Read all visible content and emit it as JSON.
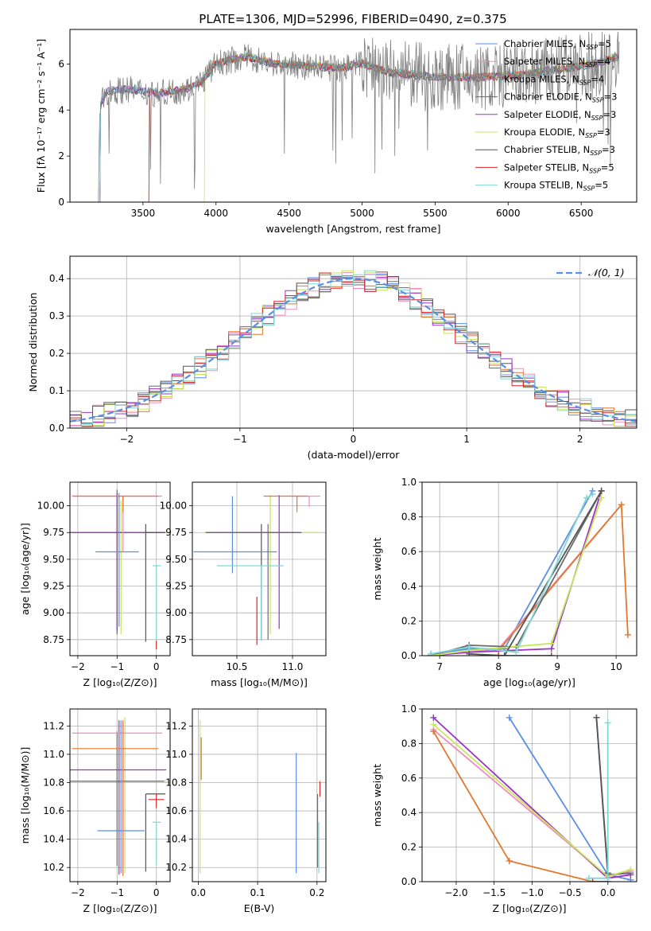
{
  "title": "PLATE=1306, MJD=52996, FIBERID=0490, z=0.375",
  "colors": [
    "#5b8ee6",
    "#f28cc0",
    "#e3772b",
    "#6b6b6b",
    "#9b30c8",
    "#c6e65a",
    "#555555",
    "#d42a2a",
    "#7fd6d6"
  ],
  "chart_data": [
    {
      "type": "line",
      "id": "spectrum",
      "xlabel": "wavelength [Angstrom, rest frame]",
      "ylabel": "Flux [fλ 10⁻¹⁷ erg cm⁻² s⁻¹ A⁻¹]",
      "xlim": [
        3000,
        6880
      ],
      "ylim": [
        0,
        7.5
      ],
      "xticks": [
        3500,
        4000,
        4500,
        5000,
        5500,
        6000,
        6500
      ],
      "yticks": [
        0,
        2,
        4,
        6
      ],
      "legend_placement": "right",
      "legend": [
        {
          "label": "Chabrier MILES, N",
          "sub": "SSP",
          "suffix": "=5",
          "color": "#5b8ee6"
        },
        {
          "label": "Salpeter MILES, N",
          "sub": "SSP",
          "suffix": "=4",
          "color": "#f28cc0"
        },
        {
          "label": "Kroupa MILES, N",
          "sub": "SSP",
          "suffix": "=4",
          "color": "#e3772b"
        },
        {
          "label": "Chabrier ELODIE, N",
          "sub": "SSP",
          "suffix": "=3",
          "color": "#6b6b6b"
        },
        {
          "label": "Salpeter ELODIE, N",
          "sub": "SSP",
          "suffix": "=3",
          "color": "#9b30c8"
        },
        {
          "label": "Kroupa ELODIE, N",
          "sub": "SSP",
          "suffix": "=3",
          "color": "#c6e65a"
        },
        {
          "label": "Chabrier STELIB, N",
          "sub": "SSP",
          "suffix": "=3",
          "color": "#555555"
        },
        {
          "label": "Salpeter STELIB, N",
          "sub": "SSP",
          "suffix": "=5",
          "color": "#d42a2a"
        },
        {
          "label": "Kroupa STELIB, N",
          "sub": "SSP",
          "suffix": "=5",
          "color": "#7fd6d6"
        }
      ],
      "data_spectrum": {
        "x_range": [
          3195,
          6760
        ],
        "continuum": [
          [
            3195,
            0
          ],
          [
            3205,
            4.1
          ],
          [
            3250,
            4.8
          ],
          [
            3400,
            4.9
          ],
          [
            3600,
            4.7
          ],
          [
            3800,
            4.9
          ],
          [
            3900,
            5.2
          ],
          [
            4000,
            6.0
          ],
          [
            4200,
            6.3
          ],
          [
            4400,
            6.0
          ],
          [
            4600,
            5.9
          ],
          [
            4850,
            5.8
          ],
          [
            5000,
            6.0
          ],
          [
            5200,
            5.6
          ],
          [
            5500,
            5.4
          ],
          [
            5800,
            5.4
          ],
          [
            6100,
            5.5
          ],
          [
            6400,
            5.8
          ],
          [
            6600,
            6.0
          ],
          [
            6760,
            6.3
          ]
        ]
      },
      "model_starts": [
        3205,
        3205,
        3540,
        3205,
        3205,
        3920,
        3205,
        3540,
        3205
      ]
    },
    {
      "type": "histogram",
      "id": "residuals",
      "xlabel": "(data-model)/error",
      "ylabel": "Normed distribution",
      "xlim": [
        -2.5,
        2.5
      ],
      "ylim": [
        0,
        0.46
      ],
      "xticks": [
        -2,
        -1,
        0,
        1,
        2
      ],
      "yticks": [
        0.0,
        0.1,
        0.2,
        0.3,
        0.4
      ],
      "grid": true,
      "legend": [
        {
          "label": "𝒩(0, 1)",
          "color": "#5b8ee6",
          "style": "dashed"
        }
      ],
      "legend_placement": "top-right",
      "bin_width": 0.1,
      "peak": 0.4
    },
    {
      "type": "errorbar",
      "id": "age_vs_Z",
      "xlabel": "Z [log₁₀(Z/Z⊙)]",
      "ylabel": "age  [log₁₀(age/yr)]",
      "xlim": [
        -2.2,
        0.35
      ],
      "ylim": [
        8.6,
        10.22
      ],
      "xticks": [
        -2,
        -1,
        0
      ],
      "yticks": [
        8.75,
        9.0,
        9.25,
        9.5,
        9.75,
        10.0
      ],
      "grid": true,
      "points": [
        {
          "x": -0.9,
          "y": 9.75,
          "xerr": [
            1.3,
            1.2
          ],
          "yerr": [
            0.95,
            0.3
          ],
          "color": "#c6e65a"
        },
        {
          "x": -1.0,
          "y": 9.75,
          "xerr": [
            1.2,
            1.2
          ],
          "yerr": [
            0.95,
            0.4
          ],
          "color": "#6b6b6b"
        },
        {
          "x": -1.0,
          "y": 9.75,
          "xerr": [
            1.2,
            1.2
          ],
          "yerr": [
            0.92,
            0.37
          ],
          "color": "#9b30c8"
        },
        {
          "x": -0.85,
          "y": 10.09,
          "xerr": [
            1.3,
            1.0
          ],
          "yerr": [
            0.52,
            0.0
          ],
          "color": "#f28cc0"
        },
        {
          "x": -0.85,
          "y": 10.09,
          "xerr": [
            1.3,
            0.9
          ],
          "yerr": [
            0.15,
            0.0
          ],
          "color": "#e3772b"
        },
        {
          "x": -0.95,
          "y": 9.57,
          "xerr": [
            0.6,
            0.5
          ],
          "yerr": [
            0.7,
            0.55
          ],
          "color": "#5b8ee6"
        },
        {
          "x": -0.27,
          "y": 9.75,
          "xerr": [
            0.0,
            0.5
          ],
          "yerr": [
            1.02,
            0.08
          ],
          "color": "#555555"
        },
        {
          "x": 0.0,
          "y": 9.44,
          "xerr": [
            0.1,
            0.12
          ],
          "yerr": [
            0.7,
            0.0
          ],
          "color": "#7fd6d6"
        },
        {
          "x": 0.0,
          "y": 8.72,
          "xerr": [
            0,
            0
          ],
          "yerr": [
            0.06,
            0.02
          ],
          "color": "#d42a2a"
        }
      ]
    },
    {
      "type": "errorbar",
      "id": "age_vs_mass",
      "xlabel": "mass [log₁₀(M/M⊙)]",
      "ylabel": "",
      "xlim": [
        10.1,
        11.3
      ],
      "ylim": [
        8.6,
        10.22
      ],
      "xticks": [
        10.5,
        11.0
      ],
      "yticks": [
        8.75,
        9.0,
        9.25,
        9.5,
        9.75,
        10.0
      ],
      "grid": true,
      "points": [
        {
          "x": 10.8,
          "y": 9.75,
          "xerr": [
            0.6,
            0.45
          ],
          "yerr": [
            0.95,
            0.35
          ],
          "color": "#c6e65a"
        },
        {
          "x": 10.72,
          "y": 9.75,
          "xerr": [
            0.5,
            0.3
          ],
          "yerr": [
            1.0,
            0.08
          ],
          "color": "#555555"
        },
        {
          "x": 10.88,
          "y": 9.75,
          "xerr": [
            0.6,
            0.2
          ],
          "yerr": [
            0.9,
            0.35
          ],
          "color": "#9b30c8"
        },
        {
          "x": 11.15,
          "y": 10.09,
          "xerr": [
            0.2,
            0.1
          ],
          "yerr": [
            0.1,
            0.0
          ],
          "color": "#f28cc0"
        },
        {
          "x": 11.04,
          "y": 10.09,
          "xerr": [
            0.3,
            0.1
          ],
          "yerr": [
            0.15,
            0.0
          ],
          "color": "#e3772b"
        },
        {
          "x": 10.46,
          "y": 9.57,
          "xerr": [
            0.35,
            0.4
          ],
          "yerr": [
            0.2,
            0.52
          ],
          "color": "#5b8ee6"
        },
        {
          "x": 10.78,
          "y": 9.75,
          "xerr": [
            0.5,
            0.3
          ],
          "yerr": [
            1.0,
            0.08
          ],
          "color": "#6b6b6b"
        },
        {
          "x": 10.72,
          "y": 9.44,
          "xerr": [
            0.4,
            0.2
          ],
          "yerr": [
            0.7,
            0.0
          ],
          "color": "#7fd6d6"
        },
        {
          "x": 10.68,
          "y": 8.95,
          "xerr": [
            0,
            0
          ],
          "yerr": [
            0.25,
            0.2
          ],
          "color": "#d42a2a"
        }
      ]
    },
    {
      "type": "line",
      "id": "massweight_vs_age",
      "xlabel": "age  [log₁₀(age/yr)]",
      "ylabel": "mass weight",
      "xlim": [
        6.7,
        10.35
      ],
      "ylim": [
        0,
        1.0
      ],
      "xticks": [
        7,
        8,
        9,
        10
      ],
      "yticks": [
        0.0,
        0.2,
        0.4,
        0.6,
        0.8,
        1.0
      ],
      "grid": true,
      "series": [
        {
          "color": "#5b8ee6",
          "points": [
            [
              6.85,
              0.01
            ],
            [
              7.5,
              0.04
            ],
            [
              8.1,
              0.04
            ],
            [
              9.6,
              0.95
            ]
          ]
        },
        {
          "color": "#f28cc0",
          "points": [
            [
              7.5,
              0.02
            ],
            [
              8.0,
              0.04
            ],
            [
              10.09,
              0.87
            ]
          ]
        },
        {
          "color": "#e3772b",
          "points": [
            [
              8.0,
              0.03
            ],
            [
              10.09,
              0.87
            ],
            [
              10.2,
              0.12
            ]
          ]
        },
        {
          "color": "#6b6b6b",
          "points": [
            [
              6.85,
              0.0
            ],
            [
              7.5,
              0.06
            ],
            [
              8.3,
              0.05
            ],
            [
              9.75,
              0.95
            ]
          ]
        },
        {
          "color": "#9b30c8",
          "points": [
            [
              6.85,
              0.0
            ],
            [
              7.5,
              0.02
            ],
            [
              8.9,
              0.04
            ],
            [
              9.75,
              0.95
            ]
          ]
        },
        {
          "color": "#c6e65a",
          "points": [
            [
              6.85,
              0.0
            ],
            [
              7.5,
              0.03
            ],
            [
              8.9,
              0.07
            ],
            [
              9.75,
              0.91
            ]
          ]
        },
        {
          "color": "#555555",
          "points": [
            [
              7.5,
              0.01
            ],
            [
              8.1,
              0.0
            ],
            [
              9.75,
              0.95
            ]
          ]
        },
        {
          "color": "#d42a2a",
          "points": [
            [
              8.0,
              0.0
            ],
            [
              8.9,
              0.0
            ]
          ]
        },
        {
          "color": "#7fd6d6",
          "points": [
            [
              6.85,
              0.01
            ],
            [
              7.5,
              0.05
            ],
            [
              8.3,
              0.02
            ],
            [
              9.5,
              0.91
            ],
            [
              9.6,
              0.93
            ]
          ]
        }
      ]
    },
    {
      "type": "errorbar",
      "id": "mass_vs_Z",
      "xlabel": "Z [log₁₀(Z/Z⊙)]",
      "ylabel": "mass [log₁₀(M/M⊙)]",
      "xlim": [
        -2.2,
        0.35
      ],
      "ylim": [
        10.1,
        11.32
      ],
      "xticks": [
        -2,
        -1,
        0
      ],
      "yticks": [
        10.2,
        10.4,
        10.6,
        10.8,
        11.0,
        11.2
      ],
      "grid": true,
      "points": [
        {
          "x": -0.8,
          "y": 10.81,
          "xerr": [
            1.4,
            1.1
          ],
          "yerr": [
            0.65,
            0.45
          ],
          "color": "#c6e65a"
        },
        {
          "x": -1.0,
          "y": 10.81,
          "xerr": [
            1.2,
            1.2
          ],
          "yerr": [
            0.6,
            0.35
          ],
          "color": "#6b6b6b"
        },
        {
          "x": -0.95,
          "y": 10.89,
          "xerr": [
            1.25,
            1.2
          ],
          "yerr": [
            0.74,
            0.35
          ],
          "color": "#9b30c8"
        },
        {
          "x": -0.85,
          "y": 11.15,
          "xerr": [
            1.3,
            1.0
          ],
          "yerr": [
            0.95,
            0.09
          ],
          "color": "#f28cc0"
        },
        {
          "x": -0.85,
          "y": 11.04,
          "xerr": [
            1.3,
            0.9
          ],
          "yerr": [
            0.9,
            0.2
          ],
          "color": "#e3772b"
        },
        {
          "x": -0.9,
          "y": 10.46,
          "xerr": [
            0.6,
            0.6
          ],
          "yerr": [
            0.3,
            0.78
          ],
          "color": "#5b8ee6"
        },
        {
          "x": -0.27,
          "y": 10.72,
          "xerr": [
            0.0,
            0.5
          ],
          "yerr": [
            0.55,
            0.0
          ],
          "color": "#555555"
        },
        {
          "x": 0.0,
          "y": 10.52,
          "xerr": [
            0.1,
            0.12
          ],
          "yerr": [
            0.3,
            0.0
          ],
          "color": "#7fd6d6"
        },
        {
          "x": 0.0,
          "y": 10.68,
          "xerr": [
            0.2,
            0.2
          ],
          "yerr": [
            0.06,
            0.04
          ],
          "color": "#d42a2a"
        }
      ]
    },
    {
      "type": "errorbar",
      "id": "mass_vs_ebv",
      "xlabel": "E(B-V)",
      "ylabel": "",
      "xlim": [
        -0.01,
        0.215
      ],
      "ylim": [
        10.1,
        11.32
      ],
      "xticks": [
        0.0,
        0.1,
        0.2
      ],
      "yticks": [
        10.2,
        10.4,
        10.6,
        10.8,
        11.0,
        11.2
      ],
      "grid": true,
      "points": [
        {
          "x": 0.003,
          "y": 10.81,
          "xerr": [
            0,
            0
          ],
          "yerr": [
            0.65,
            0.43
          ],
          "color": "#c6e65a"
        },
        {
          "x": 0.005,
          "y": 11.04,
          "xerr": [
            0,
            0
          ],
          "yerr": [
            0.22,
            0.08
          ],
          "color": "#e3772b"
        },
        {
          "x": 0.165,
          "y": 10.46,
          "xerr": [
            0,
            0
          ],
          "yerr": [
            0.3,
            0.55
          ],
          "color": "#5b8ee6"
        },
        {
          "x": 0.203,
          "y": 10.52,
          "xerr": [
            0,
            0
          ],
          "yerr": [
            0.36,
            0.0
          ],
          "color": "#7fd6d6"
        },
        {
          "x": 0.205,
          "y": 10.75,
          "xerr": [
            0,
            0
          ],
          "yerr": [
            0.05,
            0.06
          ],
          "color": "#d42a2a"
        },
        {
          "x": 0.201,
          "y": 10.7,
          "xerr": [
            0,
            0
          ],
          "yerr": [
            0.5,
            0.02
          ],
          "color": "#6b6b6b"
        }
      ]
    },
    {
      "type": "line",
      "id": "massweight_vs_Z",
      "xlabel": "Z [log₁₀(Z/Z⊙)]",
      "ylabel": "mass weight",
      "xlim": [
        -2.45,
        0.38
      ],
      "ylim": [
        0,
        1.0
      ],
      "xticks": [
        -2.0,
        -1.5,
        -1.0,
        -0.5,
        0.0
      ],
      "yticks": [
        0.0,
        0.2,
        0.4,
        0.6,
        0.8,
        1.0
      ],
      "grid": true,
      "series": [
        {
          "color": "#5b8ee6",
          "points": [
            [
              -1.3,
              0.95
            ],
            [
              0.0,
              0.04
            ],
            [
              0.3,
              0.01
            ]
          ]
        },
        {
          "color": "#f28cc0",
          "points": [
            [
              -2.3,
              0.88
            ],
            [
              0.0,
              0.03
            ],
            [
              0.3,
              0.06
            ]
          ]
        },
        {
          "color": "#e3772b",
          "points": [
            [
              -2.3,
              0.87
            ],
            [
              -1.3,
              0.12
            ],
            [
              -0.2,
              0.0
            ],
            [
              0.0,
              0.0
            ]
          ]
        },
        {
          "color": "#6b6b6b",
          "points": [
            [
              -0.15,
              0.95
            ],
            [
              0.0,
              0.04
            ],
            [
              0.3,
              0.05
            ]
          ]
        },
        {
          "color": "#9b30c8",
          "points": [
            [
              -2.3,
              0.95
            ],
            [
              0.0,
              0.02
            ],
            [
              0.3,
              0.04
            ]
          ]
        },
        {
          "color": "#c6e65a",
          "points": [
            [
              -2.3,
              0.91
            ],
            [
              0.0,
              0.03
            ],
            [
              0.3,
              0.07
            ]
          ]
        },
        {
          "color": "#555555",
          "points": [
            [
              -0.15,
              0.95
            ],
            [
              0.0,
              0.05
            ]
          ]
        },
        {
          "color": "#d42a2a",
          "points": [
            [
              -0.2,
              0.0
            ],
            [
              0.0,
              0.0
            ]
          ]
        },
        {
          "color": "#7fd6d6",
          "points": [
            [
              0.0,
              0.92
            ],
            [
              0.0,
              0.02
            ],
            [
              -0.25,
              0.02
            ]
          ]
        }
      ]
    }
  ]
}
